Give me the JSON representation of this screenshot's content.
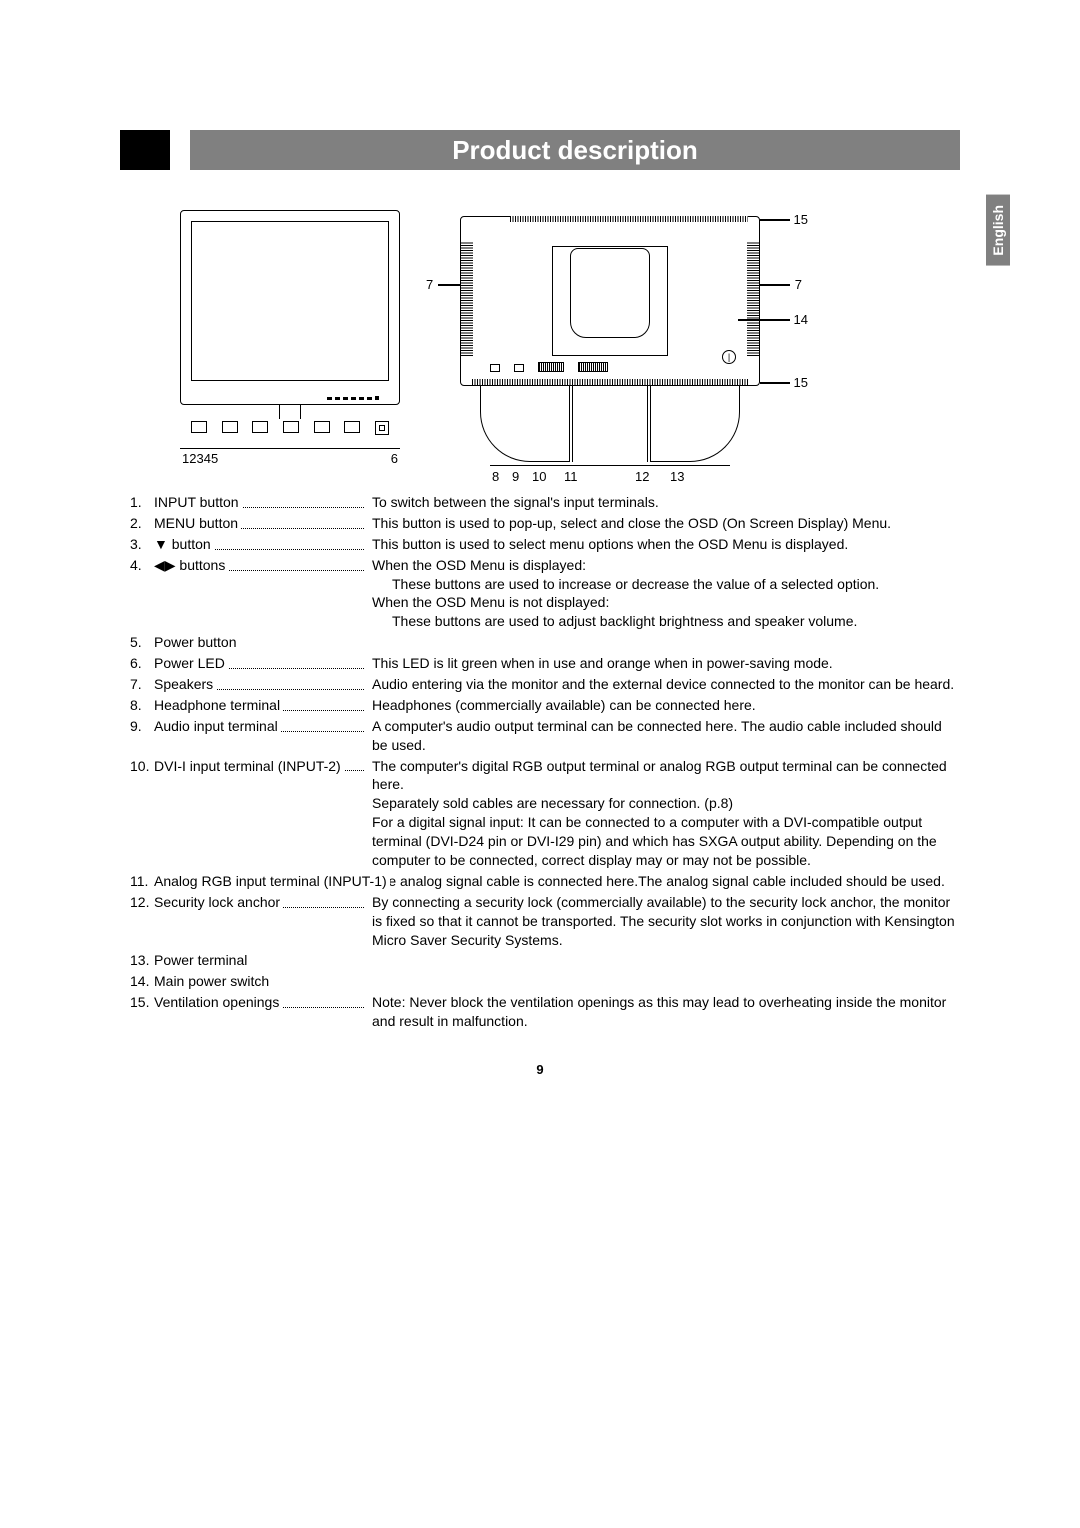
{
  "title": "Product description",
  "language_tab": "English",
  "page_number": "9",
  "diagram_front_labels": [
    "1",
    "2",
    "3",
    "4",
    "5",
    "6"
  ],
  "diagram_rear_bottom_labels": [
    "8",
    "9",
    "10",
    "11",
    "12",
    "13"
  ],
  "diagram_rear_side_labels": {
    "r7a": "7",
    "r7b": "7",
    "r14": "14",
    "r15a": "15",
    "r15b": "15"
  },
  "items": [
    {
      "n": "1.",
      "label": "INPUT button",
      "leader": true,
      "desc": [
        "To switch between the signal's input terminals."
      ]
    },
    {
      "n": "2.",
      "label": "MENU button",
      "leader": true,
      "desc": [
        "This button is used to pop-up, select and close the OSD (On Screen Display) Menu."
      ]
    },
    {
      "n": "3.",
      "label": "▼ button",
      "leader": true,
      "desc": [
        "This button is used to select menu options when the OSD Menu is displayed."
      ]
    },
    {
      "n": "4.",
      "label": "◀▶ buttons",
      "leader": true,
      "desc": [
        "When the OSD Menu is displayed:",
        {
          "indent": true,
          "t": "These buttons are used to increase or decrease the value of a selected option."
        },
        "When the OSD Menu is not displayed:",
        {
          "indent": true,
          "t": "These buttons are used to adjust backlight brightness and speaker volume."
        }
      ]
    },
    {
      "n": "5.",
      "label": "Power button",
      "leader": false,
      "desc": []
    },
    {
      "n": "6.",
      "label": "Power LED",
      "leader": true,
      "desc": [
        "This LED is lit green when in use and orange when in power-saving mode."
      ]
    },
    {
      "n": "7.",
      "label": "Speakers",
      "leader": true,
      "desc": [
        "Audio entering via the monitor and the external device connected to the monitor can be heard."
      ]
    },
    {
      "n": "8.",
      "label": "Headphone terminal",
      "leader": true,
      "desc": [
        "Headphones (commercially available) can be connected here."
      ]
    },
    {
      "n": "9.",
      "label": "Audio input terminal",
      "leader": true,
      "desc": [
        "A computer's audio output terminal can be connected here. The audio cable included should be used."
      ]
    },
    {
      "n": "10.",
      "label": "DVI-I input terminal (INPUT-2)",
      "leader": true,
      "desc": [
        "The computer's digital RGB output terminal or analog RGB output terminal can be connected here.",
        "Separately sold cables are necessary for connection. (p.8)",
        "For a digital signal input: It can be connected to a computer with a DVI-compatible output terminal (DVI-D24 pin or DVI-I29 pin) and which has SXGA output ability. Depending on the computer to be connected, correct display may or may not be possible."
      ]
    },
    {
      "n": "11.",
      "label": "Analog RGB input terminal (INPUT-1)",
      "leader": true,
      "desc": [
        "The analog signal cable is connected here.The analog signal cable included should be used."
      ]
    },
    {
      "n": "12.",
      "label": "Security lock anchor",
      "leader": true,
      "desc": [
        "By connecting a security lock (commercially available) to the security lock anchor, the monitor is fixed so that it cannot be transported. The security slot works in conjunction with Kensington Micro Saver Security Systems."
      ]
    },
    {
      "n": "13.",
      "label": "Power terminal",
      "leader": false,
      "desc": []
    },
    {
      "n": "14.",
      "label": "Main power switch",
      "leader": false,
      "desc": []
    },
    {
      "n": "15.",
      "label": "Ventilation  openings",
      "leader": true,
      "desc": [
        "Note: Never block the ventilation openings as this may lead to overheating inside the monitor and result in malfunction."
      ]
    }
  ]
}
